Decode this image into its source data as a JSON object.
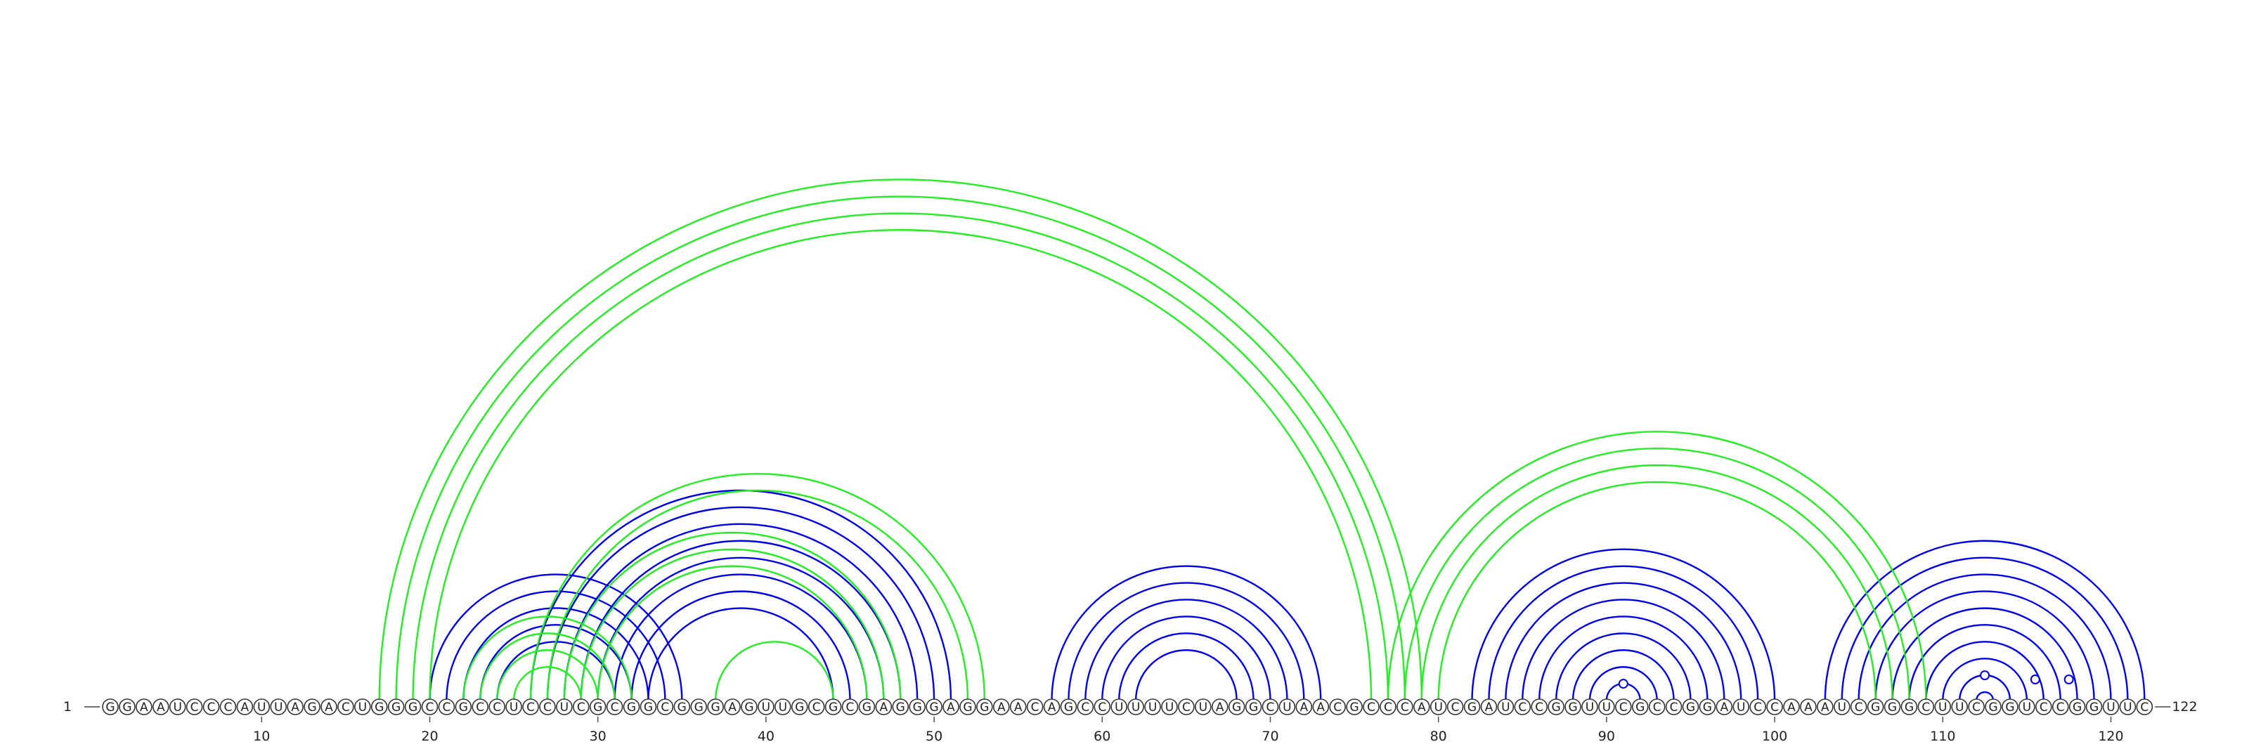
{
  "sequence": "GGAAUCCCAUUAGACUGGGCCGCCUCCUCGCGGCGGGAGUUGCGCGAGGGAGGAACAGCCUUUUCUAGGCUAACGCCCAUCGAUCCGGUUCGCCGGAUCCAAAUCGGGCUUCGGUCCGGUUC",
  "start_label": "1",
  "end_label": "122",
  "ticks": [
    "10",
    "20",
    "30",
    "40",
    "50",
    "60",
    "70",
    "80",
    "90",
    "100",
    "110",
    "120"
  ],
  "colors": {
    "structure_a": "#0000ee",
    "structure_b": "#22ee22"
  },
  "chart_data": {
    "type": "arc",
    "length": 122,
    "series": [
      {
        "color": "#0000ee",
        "pairs": [
          [
            20,
            35
          ],
          [
            21,
            34
          ],
          [
            22,
            33
          ],
          [
            23,
            32
          ],
          [
            24,
            31
          ],
          [
            26,
            51
          ],
          [
            27,
            50
          ],
          [
            28,
            49
          ],
          [
            29,
            48
          ],
          [
            30,
            47
          ],
          [
            31,
            46
          ],
          [
            32,
            45
          ],
          [
            33,
            44
          ],
          [
            57,
            73
          ],
          [
            58,
            72
          ],
          [
            59,
            71
          ],
          [
            60,
            70
          ],
          [
            61,
            69
          ],
          [
            62,
            68
          ],
          [
            82,
            100
          ],
          [
            83,
            99
          ],
          [
            84,
            98
          ],
          [
            85,
            97
          ],
          [
            86,
            96
          ],
          [
            87,
            95
          ],
          [
            88,
            94
          ],
          [
            89,
            93
          ],
          [
            90,
            92
          ],
          [
            103,
            122
          ],
          [
            104,
            121
          ],
          [
            105,
            120
          ],
          [
            106,
            119
          ],
          [
            107,
            118
          ],
          [
            108,
            117
          ],
          [
            109,
            116
          ],
          [
            110,
            115
          ],
          [
            111,
            114
          ],
          [
            112,
            113
          ]
        ],
        "markers": [
          91,
          112.5,
          115.5,
          117.5
        ]
      },
      {
        "color": "#22ee22",
        "pairs": [
          [
            17,
            79
          ],
          [
            18,
            78
          ],
          [
            19,
            77
          ],
          [
            20,
            76
          ],
          [
            22,
            32
          ],
          [
            23,
            31
          ],
          [
            24,
            30
          ],
          [
            25,
            29
          ],
          [
            26,
            53
          ],
          [
            27,
            52
          ],
          [
            28,
            48
          ],
          [
            29,
            47
          ],
          [
            30,
            46
          ],
          [
            37,
            44
          ],
          [
            77,
            109
          ],
          [
            78,
            108
          ],
          [
            79,
            107
          ],
          [
            80,
            106
          ]
        ]
      }
    ]
  }
}
